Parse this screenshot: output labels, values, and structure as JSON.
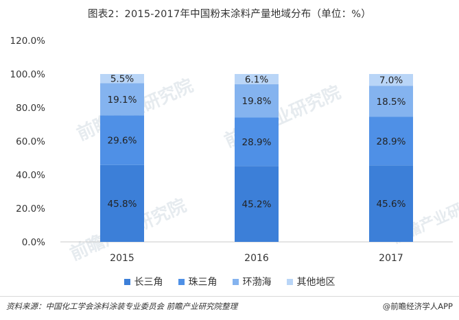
{
  "title": "图表2：2015-2017年中国粉末涂料产量地域分布（单位：%）",
  "chart_data": {
    "type": "bar",
    "stacked": true,
    "categories": [
      "2015",
      "2016",
      "2017"
    ],
    "series": [
      {
        "name": "长三角",
        "values": [
          45.8,
          45.2,
          45.6
        ],
        "color": "#3c7fd8",
        "labels": [
          "45.8%",
          "45.2%",
          "45.6%"
        ]
      },
      {
        "name": "珠三角",
        "values": [
          29.6,
          28.9,
          28.9
        ],
        "color": "#4f90e6",
        "labels": [
          "29.6%",
          "28.9%",
          "28.9%"
        ]
      },
      {
        "name": "环渤海",
        "values": [
          19.1,
          19.8,
          18.5
        ],
        "color": "#84b3ef",
        "labels": [
          "19.1%",
          "19.8%",
          "18.5%"
        ]
      },
      {
        "name": "其他地区",
        "values": [
          5.5,
          6.1,
          7.0
        ],
        "color": "#b9d5f7",
        "labels": [
          "5.5%",
          "6.1%",
          "7.0%"
        ]
      }
    ],
    "yticks": [
      "0.0%",
      "20.0%",
      "40.0%",
      "60.0%",
      "80.0%",
      "100.0%",
      "120.0%"
    ],
    "ylim": [
      0,
      120
    ],
    "legend_position": "bottom"
  },
  "watermark": "前瞻产业研究院",
  "footer": {
    "source": "资料来源：中国化工学会涂料涂装专业委员会 前瞻产业研究院整理",
    "brand": "@前瞻经济学人APP"
  }
}
